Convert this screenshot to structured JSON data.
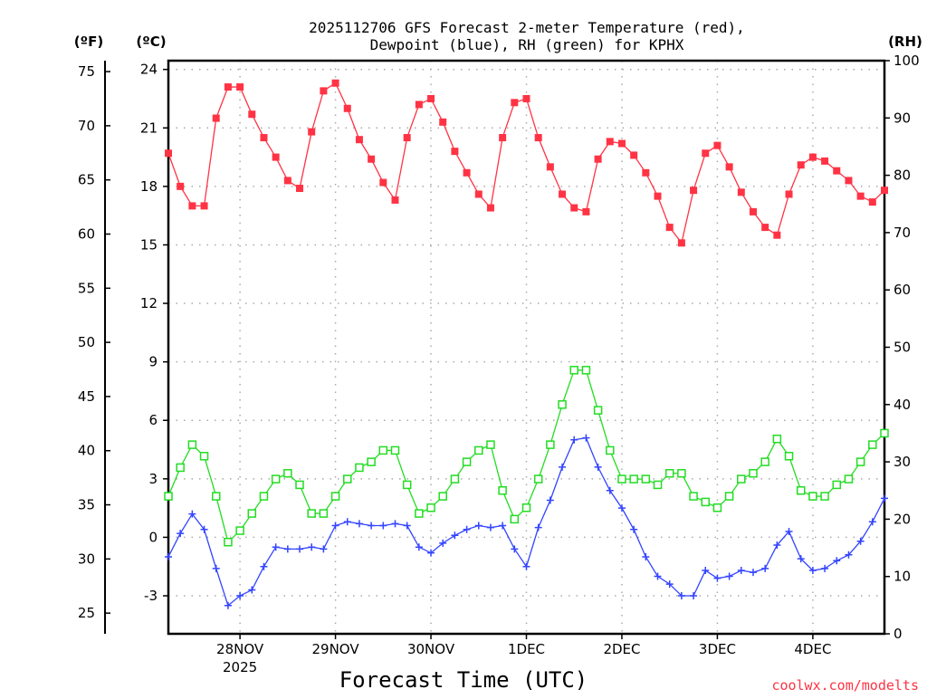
{
  "chart_data": {
    "type": "line",
    "title_line1": "2025112706 GFS Forecast 2-meter Temperature (red),",
    "title_line2": "Dewpoint (blue), RH (green) for KPHX",
    "xlabel": "Forecast Time (UTC)",
    "credit": "coolwx.com/modelts",
    "units": {
      "left_f": "(ºF)",
      "left_c": "(ºC)",
      "right_rh": "(RH)"
    },
    "x_hours_from_init": [
      0,
      3,
      6,
      9,
      12,
      15,
      18,
      21,
      24,
      27,
      30,
      33,
      36,
      39,
      42,
      45,
      48,
      51,
      54,
      57,
      60,
      63,
      66,
      69,
      72,
      75,
      78,
      81,
      84,
      87,
      90,
      93,
      96,
      99,
      102,
      105,
      108,
      111,
      114,
      117,
      120,
      123,
      126,
      129,
      132,
      135,
      138,
      141,
      144,
      147,
      150,
      153,
      156,
      159,
      162,
      165,
      168,
      171,
      174,
      177,
      180
    ],
    "x_range_hours": [
      0,
      180
    ],
    "x_ticks": [
      {
        "hour": 18,
        "label": "28NOV",
        "sublabel": "2025"
      },
      {
        "hour": 42,
        "label": "29NOV"
      },
      {
        "hour": 66,
        "label": "30NOV"
      },
      {
        "hour": 90,
        "label": "1DEC"
      },
      {
        "hour": 114,
        "label": "2DEC"
      },
      {
        "hour": 138,
        "label": "3DEC"
      },
      {
        "hour": 162,
        "label": "4DEC"
      }
    ],
    "y_celsius_range": [
      -4.95,
      24.45
    ],
    "y_celsius_ticks": [
      "-3",
      "0",
      "3",
      "6",
      "9",
      "12",
      "15",
      "18",
      "21",
      "24"
    ],
    "y_fahrenheit_ticks": [
      "25",
      "30",
      "35",
      "40",
      "45",
      "50",
      "55",
      "60",
      "65",
      "70",
      "75"
    ],
    "y_rh_range": [
      0,
      100
    ],
    "y_rh_ticks": [
      "0",
      "10",
      "20",
      "30",
      "40",
      "50",
      "60",
      "70",
      "80",
      "90",
      "100"
    ],
    "grid": true,
    "series": [
      {
        "name": "Temperature (C)",
        "color": "#ff3344",
        "marker": "filled-square",
        "axis": "celsius",
        "values": [
          19.7,
          18.0,
          17.0,
          17.0,
          21.5,
          23.1,
          23.1,
          21.7,
          20.5,
          19.5,
          18.3,
          17.9,
          20.8,
          22.9,
          23.3,
          22.0,
          20.4,
          19.4,
          18.2,
          17.3,
          20.5,
          22.2,
          22.5,
          21.3,
          19.8,
          18.7,
          17.6,
          16.9,
          20.5,
          22.3,
          22.5,
          20.5,
          19.0,
          17.6,
          16.9,
          16.7,
          19.4,
          20.3,
          20.2,
          19.6,
          18.7,
          17.5,
          15.9,
          15.1,
          17.8,
          19.7,
          20.1,
          19.0,
          17.7,
          16.7,
          15.9,
          15.5,
          17.6,
          19.1,
          19.5,
          19.3,
          18.8,
          18.3,
          17.5,
          17.2,
          17.8
        ]
      },
      {
        "name": "Dewpoint (C)",
        "color": "#3344ff",
        "marker": "plus",
        "axis": "celsius",
        "values": [
          -1.0,
          0.2,
          1.2,
          0.4,
          -1.6,
          -3.5,
          -3.0,
          -2.7,
          -1.5,
          -0.5,
          -0.6,
          -0.6,
          -0.5,
          -0.6,
          0.6,
          0.8,
          0.7,
          0.6,
          0.6,
          0.7,
          0.6,
          -0.5,
          -0.8,
          -0.3,
          0.1,
          0.4,
          0.6,
          0.5,
          0.6,
          -0.6,
          -1.5,
          0.5,
          1.9,
          3.6,
          5.0,
          5.1,
          3.6,
          2.4,
          1.5,
          0.4,
          -1.0,
          -2.0,
          -2.4,
          -3.0,
          -3.0,
          -1.7,
          -2.1,
          -2.0,
          -1.7,
          -1.8,
          -1.6,
          -0.4,
          0.3,
          -1.1,
          -1.7,
          -1.6,
          -1.2,
          -0.9,
          -0.2,
          0.8,
          2.0
        ]
      },
      {
        "name": "RH (%)",
        "color": "#22dd22",
        "marker": "open-square",
        "axis": "rh",
        "values": [
          24,
          29,
          33,
          31,
          24,
          16,
          18,
          21,
          24,
          27,
          28,
          26,
          21,
          21,
          24,
          27,
          29,
          30,
          32,
          32,
          26,
          21,
          22,
          24,
          27,
          30,
          32,
          33,
          25,
          20,
          22,
          27,
          33,
          40,
          46,
          46,
          39,
          32,
          27,
          27,
          27,
          26,
          28,
          28,
          24,
          23,
          22,
          24,
          27,
          28,
          30,
          34,
          31,
          25,
          24,
          24,
          26,
          27,
          30,
          33,
          35
        ]
      }
    ]
  }
}
